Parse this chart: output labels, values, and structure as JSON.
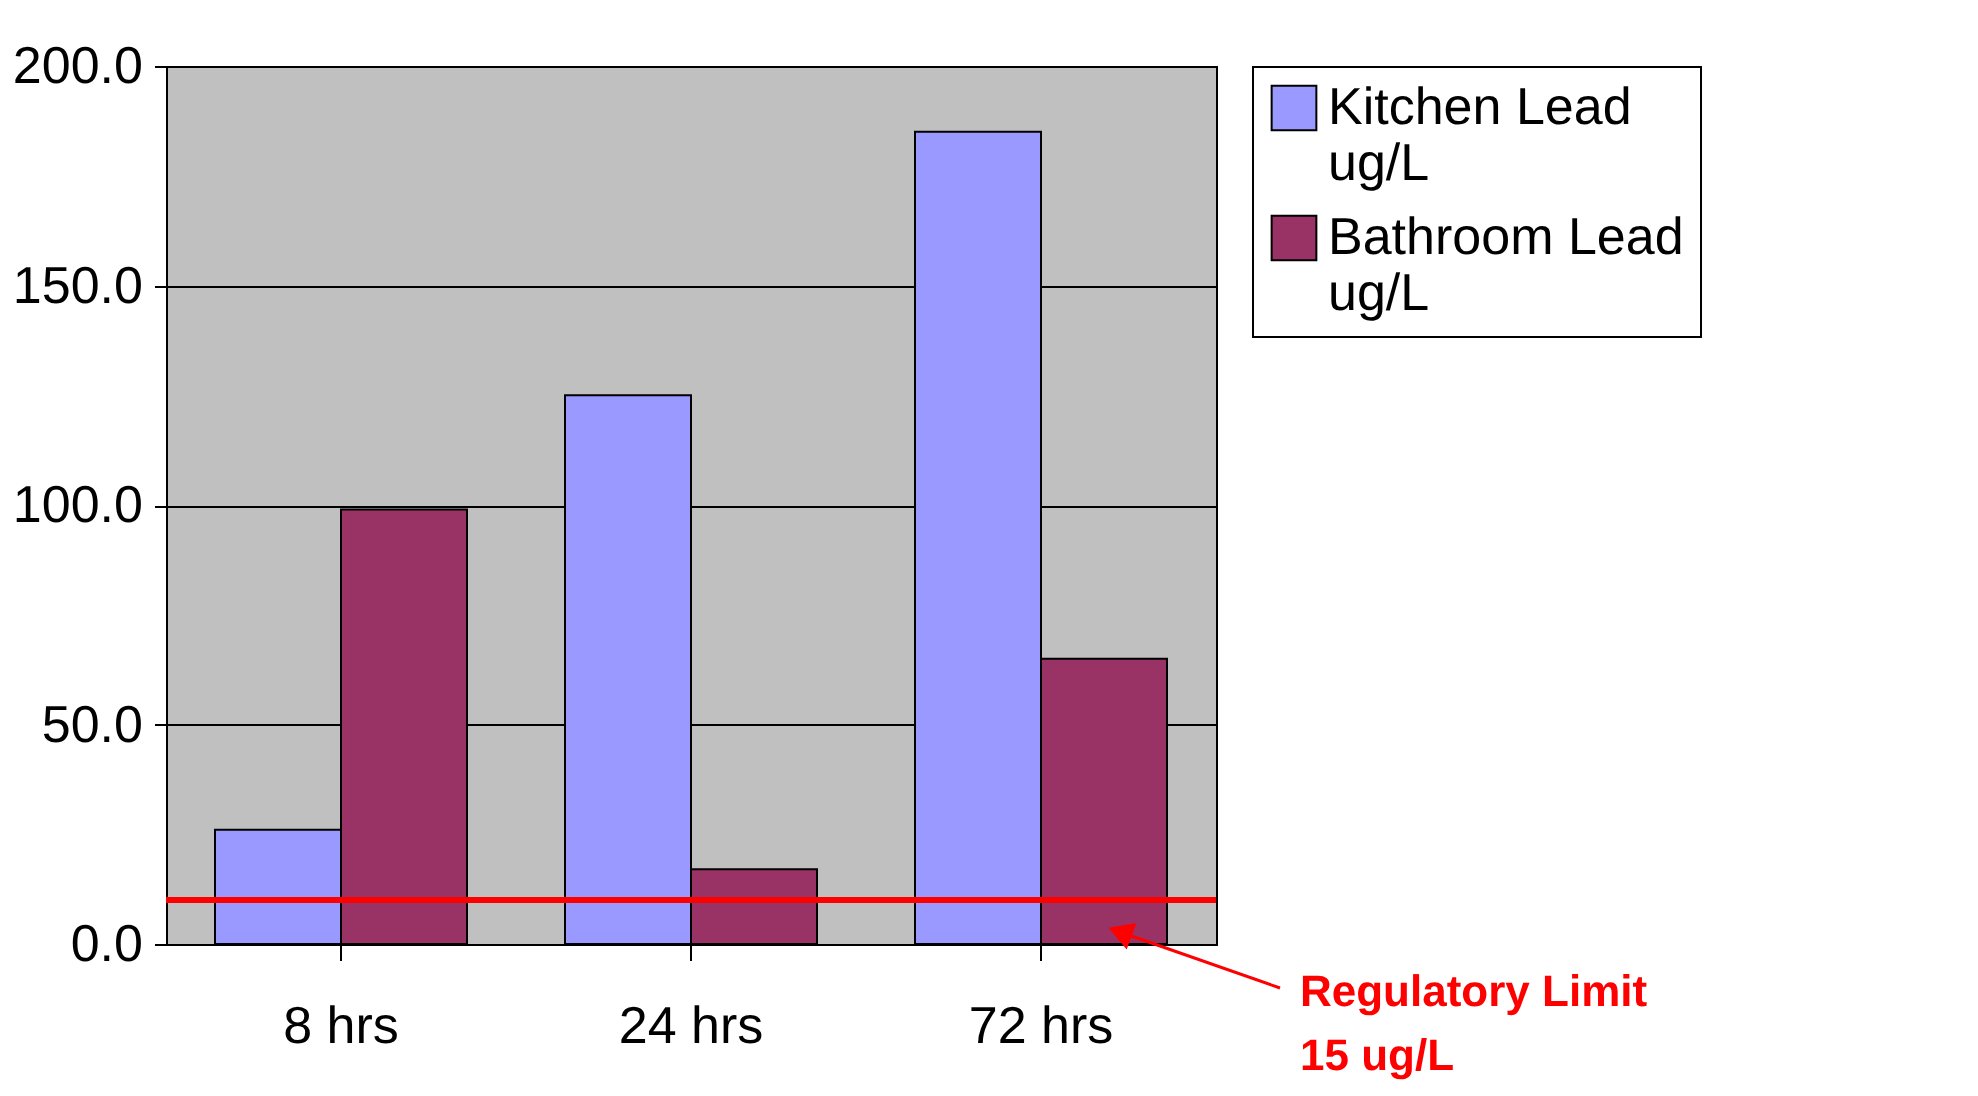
{
  "chart_data": {
    "type": "bar",
    "categories": [
      "8 hrs",
      "24 hrs",
      "72 hrs"
    ],
    "series": [
      {
        "name": "Kitchen Lead ug/L",
        "color": "#9999ff",
        "values": [
          26,
          125,
          185
        ]
      },
      {
        "name": "Bathroom Lead ug/L",
        "color": "#993366",
        "values": [
          99,
          17,
          65
        ]
      }
    ],
    "ylim": [
      0,
      200
    ],
    "yticks": [
      {
        "value": 0,
        "label": "0.0"
      },
      {
        "value": 50,
        "label": "50.0"
      },
      {
        "value": 100,
        "label": "100.0"
      },
      {
        "value": 150,
        "label": "150.0"
      },
      {
        "value": 200,
        "label": "200.0"
      }
    ],
    "grid": "y",
    "legend": "right",
    "ref_lines": [
      {
        "axis": "y",
        "value": 10,
        "label": "Regulatory Limit\n15 ug/L",
        "color": "#ff0000"
      }
    ]
  }
}
